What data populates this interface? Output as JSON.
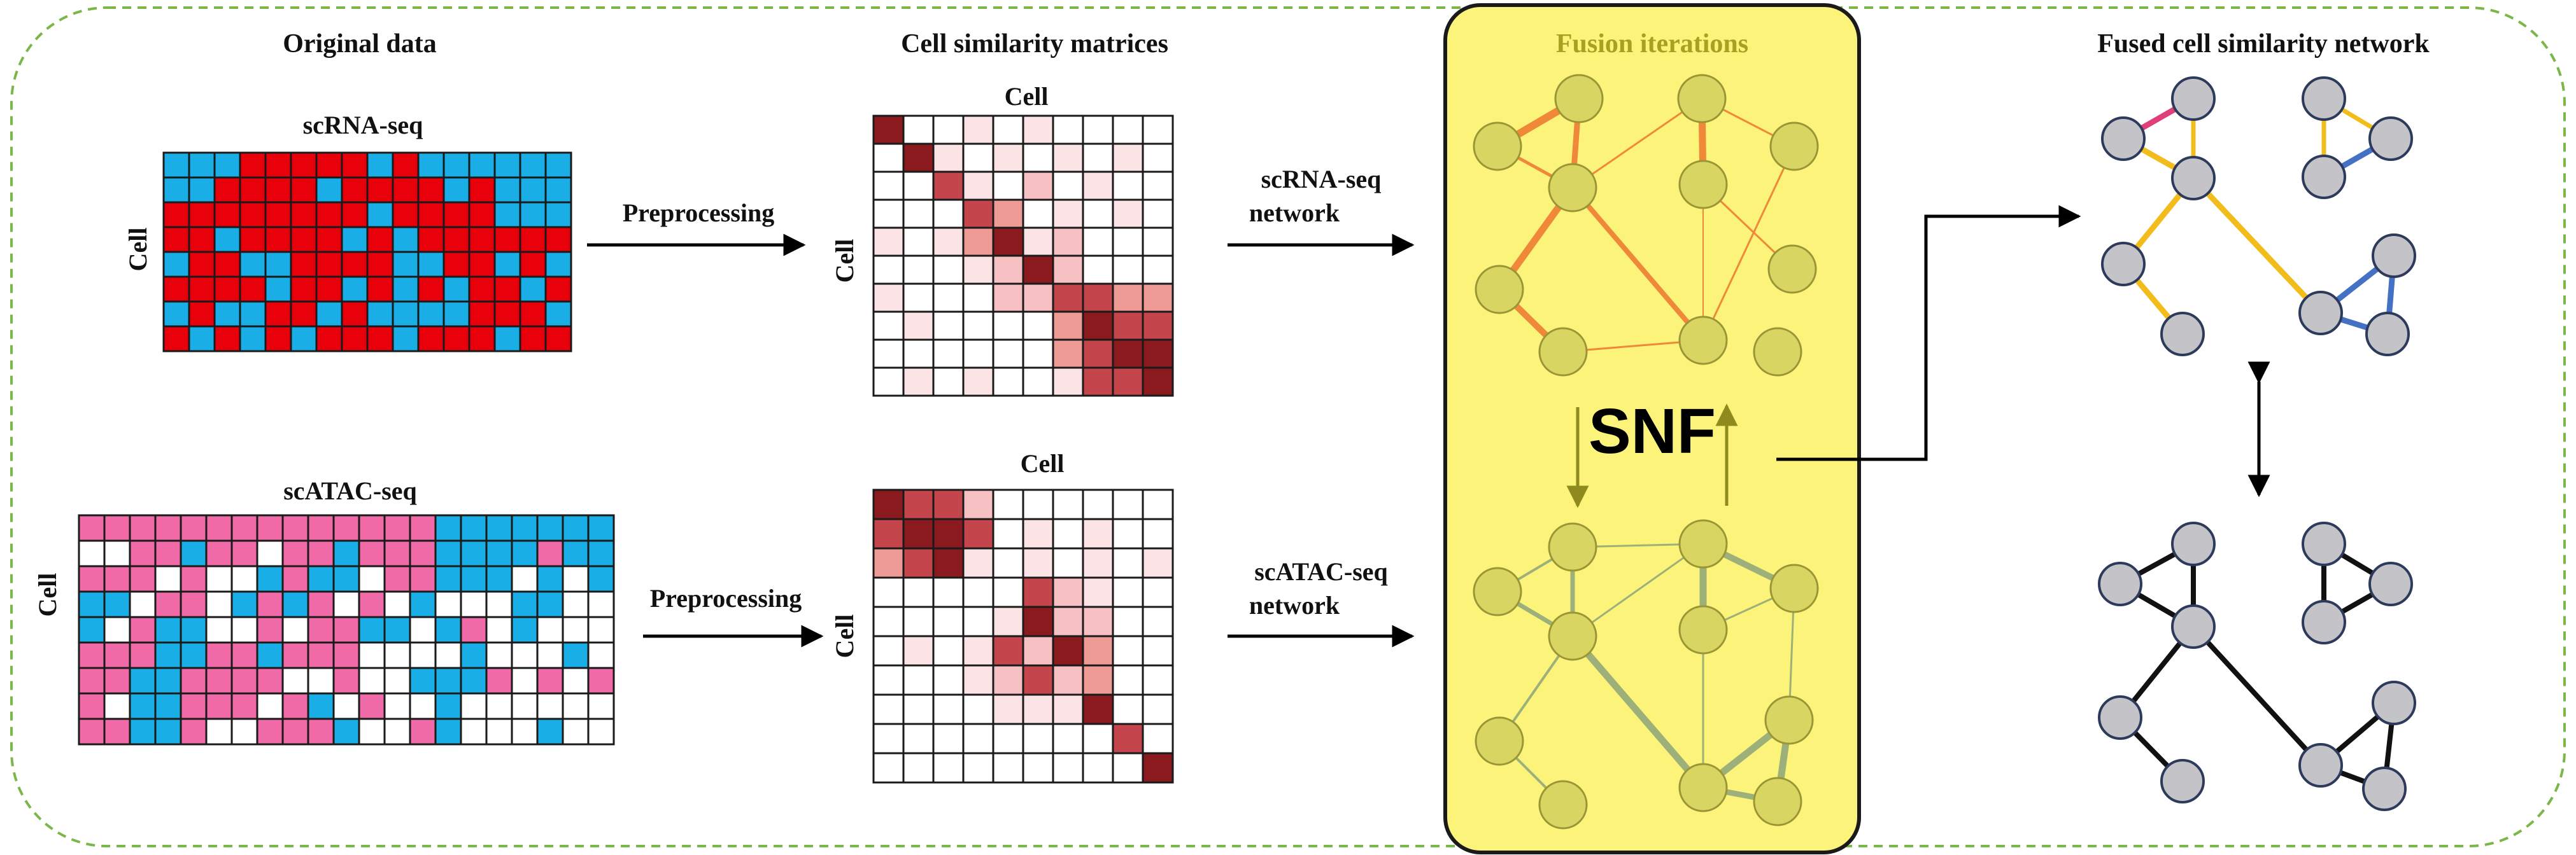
{
  "titles": {
    "original_data": "Original data",
    "similarity_matrices": "Cell similarity matrices",
    "fusion": "Fusion iterations",
    "fused_network": "Fused cell similarity network"
  },
  "labels": {
    "scrna": "scRNA-seq",
    "scatac": "scATAC-seq",
    "cell": "Cell",
    "preprocessing": "Preprocessing",
    "scrna_network_1": "scRNA-seq",
    "scrna_network_2": "network",
    "scatac_network_1": "scATAC-seq",
    "scatac_network_2": "network",
    "snf": "SNF"
  },
  "colors": {
    "border_dashed": "#7ab648",
    "fusion_panel_fill": "#fbf37a",
    "fusion_title": "#a8a020",
    "rna_high": "#e8000b",
    "rna_low": "#19aee6",
    "atac_pink": "#f06aa8",
    "atac_blue": "#19aee6",
    "atac_white": "#ffffff",
    "node_fill": "#d9d563",
    "node_stroke": "#9a9535",
    "rna_edge": "#f0883a",
    "atac_edge": "#9db07a",
    "fused_node_fill": "#c4c4c8",
    "fused_node_stroke": "#2e3a5c",
    "fused_edge_yellow": "#f2bd1c",
    "fused_edge_blue": "#4471c4",
    "fused_edge_pink": "#e0407a",
    "black_edge": "#111111",
    "heat_dark": "#8b1a1e"
  },
  "matrices": {
    "scrna_data": [
      "0001111101000000",
      "0011110111101000",
      "1111111101111000",
      "1101111010111111",
      "0110011110011010",
      "1111011010101101",
      "0100110100001110",
      "1010101110111011"
    ],
    "scatac_data": [
      "111111111111112222222",
      "001121101121112222122",
      "111010021220112220202",
      "220110212101020002200",
      "201220010112202102000",
      "111221121110000200020",
      "112211110010022210101",
      "102211101201002000000",
      "112210011120012000200"
    ],
    "scrna_similarity": [
      "5001010000",
      "0510101010",
      "0041020100",
      "0004301010",
      "1013512000",
      "0001252000",
      "1000224433",
      "0100003544",
      "0000003455",
      "0101001445"
    ],
    "scatac_similarity": [
      "5442000000",
      "4554010100",
      "3451010101",
      "0000042100",
      "0000152200",
      "0101425300",
      "0001242300",
      "0000111500",
      "0000000040",
      "0000000005"
    ]
  },
  "icons": {
    "flow_arrows": "right-arrow-icon",
    "snf_cycle": "cycle-arrows-icon",
    "compare": "double-arrow-icon"
  }
}
